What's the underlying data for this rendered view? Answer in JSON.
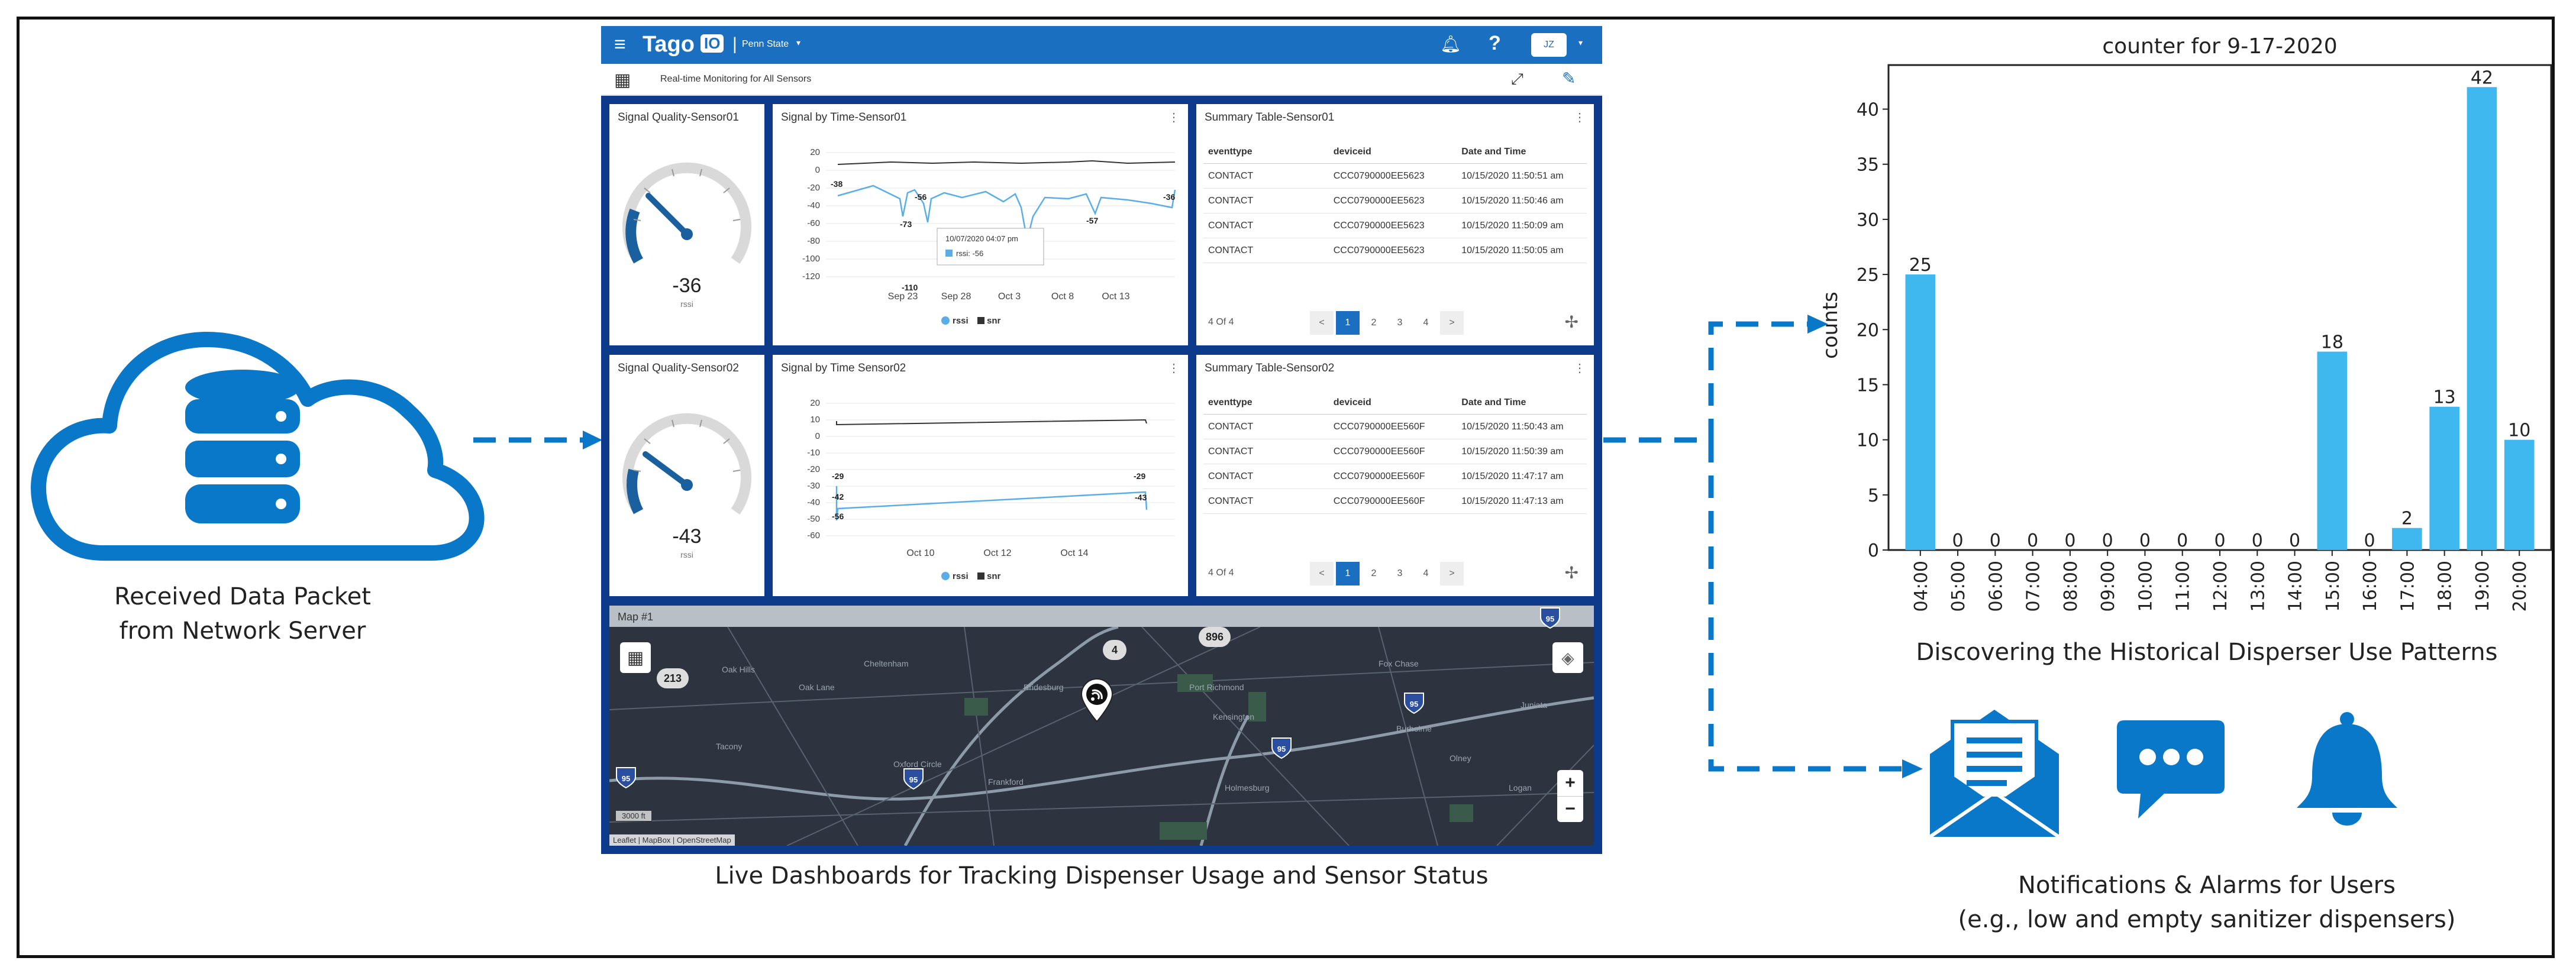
{
  "left": {
    "caption_line1": "Received Data Packet",
    "caption_line2": "from Network Server"
  },
  "dashboard": {
    "caption": "Live Dashboards for Tracking Dispenser Usage and Sensor Status",
    "brand": "Tago",
    "brand_badge": "IO",
    "org": "Penn State",
    "user_initials": "JZ",
    "sub_title": "Real-time Monitoring for All Sensors",
    "sensor1": {
      "gauge_title": "Signal Quality-Sensor01",
      "gauge_value": "-36",
      "gauge_unit": "rssi",
      "chart_title": "Signal by Time-Sensor01",
      "yticks": [
        "20",
        "0",
        "-20",
        "-40",
        "-60",
        "-80",
        "-100",
        "-120"
      ],
      "xticks": [
        "Sep 23",
        "Sep 28",
        "Oct 3",
        "Oct 8",
        "Oct 13"
      ],
      "tooltip_date": "10/07/2020 04:07 pm",
      "tooltip_value": "rssi: -56",
      "point_labels": [
        "-38",
        "-73",
        "-56",
        "-110",
        "-57",
        "-36"
      ],
      "legend_rssi": "rssi",
      "legend_snr": "snr",
      "table_title": "Summary Table-Sensor01",
      "headers": [
        "eventtype",
        "deviceid",
        "Date and Time"
      ],
      "rows": [
        [
          "CONTACT",
          "CCC0790000EE5623",
          "10/15/2020 11:50:51 am"
        ],
        [
          "CONTACT",
          "CCC0790000EE5623",
          "10/15/2020 11:50:46 am"
        ],
        [
          "CONTACT",
          "CCC0790000EE5623",
          "10/15/2020 11:50:09 am"
        ],
        [
          "CONTACT",
          "CCC0790000EE5623",
          "10/15/2020 11:50:05 am"
        ]
      ],
      "count": "4 Of 4"
    },
    "sensor2": {
      "gauge_title": "Signal Quality-Sensor02",
      "gauge_value": "-43",
      "gauge_unit": "rssi",
      "chart_title": "Signal by Time Sensor02",
      "yticks": [
        "20",
        "10",
        "0",
        "-10",
        "-20",
        "-30",
        "-40",
        "-50",
        "-60"
      ],
      "xticks": [
        "Oct 10",
        "Oct 12",
        "Oct 14"
      ],
      "point_labels": [
        "-29",
        "-42",
        "-56",
        "-29",
        "-43"
      ],
      "legend_rssi": "rssi",
      "legend_snr": "snr",
      "table_title": "Summary Table-Sensor02",
      "headers": [
        "eventtype",
        "deviceid",
        "Date and Time"
      ],
      "rows": [
        [
          "CONTACT",
          "CCC0790000EE560F",
          "10/15/2020 11:50:43 am"
        ],
        [
          "CONTACT",
          "CCC0790000EE560F",
          "10/15/2020 11:50:39 am"
        ],
        [
          "CONTACT",
          "CCC0790000EE560F",
          "10/15/2020 11:47:17 am"
        ],
        [
          "CONTACT",
          "CCC0790000EE560F",
          "10/15/2020 11:47:13 am"
        ]
      ],
      "count": "4 Of 4"
    },
    "pager": {
      "prev": "<",
      "next": ">",
      "pages": [
        "1",
        "2",
        "3",
        "4"
      ]
    },
    "map": {
      "title": "Map #1",
      "badges": [
        "213",
        "896",
        "4"
      ],
      "shields": [
        "95",
        "95",
        "95",
        "95",
        "95"
      ],
      "places": [
        "Oak Hills",
        "Oak Lane",
        "Cheltenham",
        "Tacony",
        "Oxford Circle",
        "Frankford",
        "Bridesburg",
        "Port Richmond",
        "Kensington",
        "Holmesburg",
        "Fox Chase",
        "Burholme",
        "Olney",
        "Logan",
        "Juniata"
      ],
      "scale": "3000 ft",
      "attribution": "Leaflet | MapBox | OpenStreetMap",
      "zoom_in": "+",
      "zoom_out": "−"
    }
  },
  "chart_data": {
    "type": "bar",
    "title": "counter for 9-17-2020",
    "ylabel": "counts",
    "xlabel": "",
    "categories": [
      "04:00",
      "05:00",
      "06:00",
      "07:00",
      "08:00",
      "09:00",
      "10:00",
      "11:00",
      "12:00",
      "13:00",
      "14:00",
      "15:00",
      "16:00",
      "17:00",
      "18:00",
      "19:00",
      "20:00"
    ],
    "values": [
      25,
      0,
      0,
      0,
      0,
      0,
      0,
      0,
      0,
      0,
      0,
      18,
      0,
      2,
      13,
      42,
      10
    ],
    "ylim": [
      0,
      44
    ],
    "yticks": [
      0,
      5,
      10,
      15,
      20,
      25,
      30,
      35,
      40
    ],
    "bar_color": "#3fb8ef",
    "grid": false
  },
  "right": {
    "chart_caption": "Discovering the Historical Disperser Use Patterns",
    "notify_line1": "Notifications & Alarms for Users",
    "notify_line2": "(e.g., low and empty sanitizer dispensers)"
  },
  "colors": {
    "accent": "#0a78c8",
    "dashboard_border": "#0d3a8a",
    "map_bg": "#2d3440"
  },
  "icons": [
    "cloud-database-icon",
    "envelope-icon",
    "chat-bubble-icon",
    "bell-icon"
  ]
}
